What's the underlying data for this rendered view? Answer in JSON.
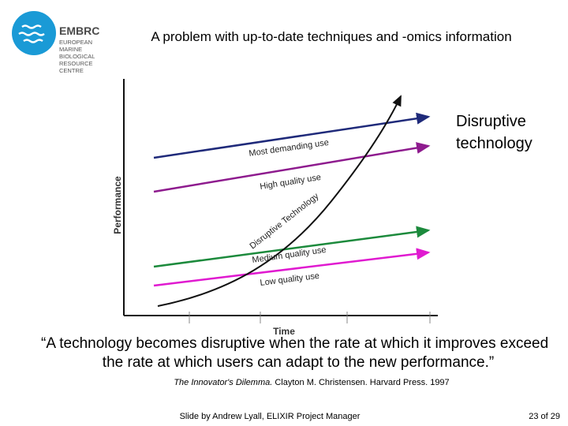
{
  "logo": {
    "name": "EMBRC",
    "lines": [
      "EUROPEAN",
      "MARINE",
      "BIOLOGICAL",
      "RESOURCE",
      "CENTRE"
    ]
  },
  "title": "A problem with up-to-date techniques and -omics information",
  "diagram": {
    "y_axis_label": "Performance",
    "x_axis_label": "Time",
    "lines": [
      "Most demanding use",
      "High quality use",
      "Disruptive Technology",
      "Medium quality use",
      "Low quality use"
    ],
    "callout": [
      "Disruptive",
      "technology"
    ]
  },
  "quote": [
    "“A technology becomes disruptive when the rate at which it improves exceed",
    "the rate at which users can adapt to the new performance.”"
  ],
  "citation": {
    "book": "The Innovator's Dilemma.",
    "rest": " Clayton M. Christensen. Harvard Press. 1997"
  },
  "footer": {
    "credit": "Slide by Andrew Lyall, ELIXIR Project Manager",
    "page": "23 of 29"
  }
}
